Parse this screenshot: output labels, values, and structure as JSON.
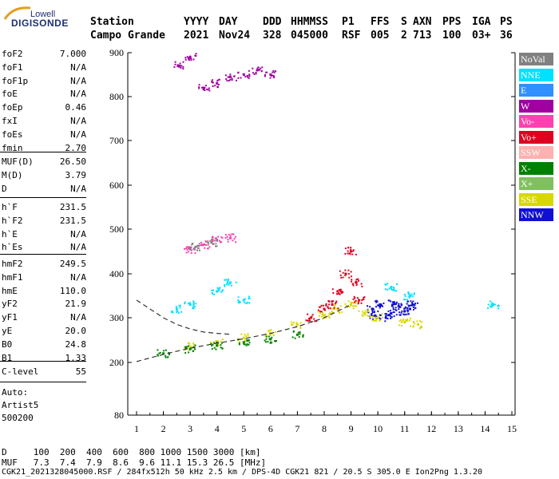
{
  "logo": {
    "top": "Lowell",
    "bottom": "DIGISONDE"
  },
  "header": {
    "labels": [
      "Station",
      "YYYY",
      "DAY",
      "DDD",
      "HHMMSS",
      "P1",
      "FFS",
      "S",
      "AXN",
      "PPS",
      "IGA",
      "PS"
    ],
    "values": [
      "Campo Grande",
      "2021",
      "Nov24",
      "328",
      "045000",
      "RSF",
      "005",
      "2",
      "713",
      "100",
      "03+",
      "36"
    ]
  },
  "params": {
    "group1": [
      {
        "name": "foF2",
        "value": "7.000"
      },
      {
        "name": "foF1",
        "value": "N/A"
      },
      {
        "name": "foF1p",
        "value": "N/A"
      },
      {
        "name": "foE",
        "value": "N/A"
      },
      {
        "name": "foEp",
        "value": "0.46"
      },
      {
        "name": "fxI",
        "value": "N/A"
      },
      {
        "name": "foEs",
        "value": "N/A"
      },
      {
        "name": "fmin",
        "value": "2.70"
      }
    ],
    "group2": [
      {
        "name": "MUF(D)",
        "value": "26.50"
      },
      {
        "name": "M(D)",
        "value": "3.79"
      },
      {
        "name": "D",
        "value": "N/A"
      }
    ],
    "group3": [
      {
        "name": "h`F",
        "value": "231.5"
      },
      {
        "name": "h`F2",
        "value": "231.5"
      },
      {
        "name": "h`E",
        "value": "N/A"
      },
      {
        "name": "h`Es",
        "value": "N/A"
      }
    ],
    "group4": [
      {
        "name": "hmF2",
        "value": "249.5"
      },
      {
        "name": "hmF1",
        "value": "N/A"
      },
      {
        "name": "hmE",
        "value": "110.0"
      },
      {
        "name": "yF2",
        "value": "21.9"
      },
      {
        "name": "yF1",
        "value": "N/A"
      },
      {
        "name": "yE",
        "value": "20.0"
      },
      {
        "name": "B0",
        "value": "24.8"
      },
      {
        "name": "B1",
        "value": "1.33"
      }
    ],
    "group5": [
      {
        "name": "C-level",
        "value": "55"
      }
    ],
    "auto": [
      "Auto:",
      "Artist5",
      "500200"
    ]
  },
  "legend": [
    {
      "label": "NoVal",
      "color": "#808080"
    },
    {
      "label": "NNE",
      "color": "#00e0ff"
    },
    {
      "label": "E",
      "color": "#3090ff"
    },
    {
      "label": "W",
      "color": "#a000a0"
    },
    {
      "label": "Vo-",
      "color": "#ff40b0"
    },
    {
      "label": "Vo+",
      "color": "#e00020"
    },
    {
      "label": "SSW",
      "color": "#ffb0b0"
    },
    {
      "label": "X-",
      "color": "#008000"
    },
    {
      "label": "X+",
      "color": "#80c060"
    },
    {
      "label": "SSE",
      "color": "#d8d800"
    },
    {
      "label": "NNW",
      "color": "#1010d0"
    }
  ],
  "footer": {
    "line1": "D     100  200  400  600  800 1000 1500 3000 [km]",
    "line2": "MUF   7.3  7.4  7.9  8.6  9.6 11.1 15.3 26.5 [MHz]",
    "line3": "CGK21_2021328045000.RSF / 284fx512h 50 kHz 2.5 km / DPS-4D CGK21 821 / 20.5 S 305.0 E Ion2Png 1.3.20"
  },
  "chart_data": {
    "type": "scatter",
    "xlabel": "",
    "ylabel": "",
    "xlim": [
      0.8,
      15.2
    ],
    "ylim": [
      80,
      900
    ],
    "x_ticks": [
      1,
      2,
      3,
      4,
      5,
      6,
      7,
      8,
      9,
      10,
      11,
      12,
      13,
      14,
      15
    ],
    "y_ticks": [
      80,
      200,
      300,
      400,
      500,
      600,
      700,
      800,
      900
    ],
    "grid": false,
    "legend_position": "right",
    "series": [
      {
        "name": "NNW",
        "points": [
          [
            9.8,
            320
          ],
          [
            10.1,
            330
          ],
          [
            10.5,
            310
          ],
          [
            10.8,
            325
          ],
          [
            11.0,
            315
          ],
          [
            11.3,
            330
          ],
          [
            10.3,
            300
          ],
          [
            9.9,
            305
          ],
          [
            10.6,
            335
          ],
          [
            11.2,
            320
          ]
        ]
      },
      {
        "name": "SSE",
        "points": [
          [
            3.0,
            235
          ],
          [
            4.0,
            245
          ],
          [
            5.0,
            255
          ],
          [
            6.0,
            265
          ],
          [
            7.0,
            285
          ],
          [
            8.0,
            305
          ],
          [
            8.5,
            320
          ],
          [
            9.0,
            330
          ],
          [
            9.5,
            310
          ],
          [
            10.0,
            300
          ],
          [
            11.0,
            290
          ],
          [
            11.5,
            285
          ]
        ]
      },
      {
        "name": "Vo+",
        "points": [
          [
            7.5,
            300
          ],
          [
            8.0,
            320
          ],
          [
            8.5,
            360
          ],
          [
            8.8,
            400
          ],
          [
            9.0,
            450
          ],
          [
            9.2,
            380
          ],
          [
            9.3,
            340
          ],
          [
            8.3,
            330
          ]
        ]
      },
      {
        "name": "X-",
        "points": [
          [
            2.0,
            220
          ],
          [
            3.0,
            230
          ],
          [
            4.0,
            238
          ],
          [
            5.0,
            245
          ],
          [
            6.0,
            252
          ],
          [
            7.0,
            262
          ]
        ]
      },
      {
        "name": "NNE",
        "points": [
          [
            2.5,
            320
          ],
          [
            3.0,
            330
          ],
          [
            4.0,
            360
          ],
          [
            4.5,
            380
          ],
          [
            5.0,
            340
          ],
          [
            10.5,
            370
          ],
          [
            11.2,
            350
          ],
          [
            14.3,
            330
          ]
        ]
      },
      {
        "name": "W",
        "points": [
          [
            2.6,
            870
          ],
          [
            3.0,
            890
          ],
          [
            3.5,
            820
          ],
          [
            4.0,
            830
          ],
          [
            4.5,
            845
          ],
          [
            5.0,
            850
          ],
          [
            5.5,
            860
          ],
          [
            6.0,
            850
          ]
        ]
      },
      {
        "name": "Vo-",
        "points": [
          [
            3.0,
            455
          ],
          [
            3.5,
            465
          ],
          [
            4.0,
            475
          ],
          [
            4.5,
            480
          ]
        ]
      },
      {
        "name": "NoVal",
        "points": [
          [
            3.2,
            460
          ],
          [
            3.8,
            470
          ]
        ]
      }
    ],
    "curves": [
      {
        "name": "profile",
        "points": [
          [
            1.0,
            340
          ],
          [
            1.5,
            320
          ],
          [
            2.0,
            300
          ],
          [
            2.5,
            285
          ],
          [
            3.0,
            275
          ],
          [
            3.5,
            268
          ],
          [
            4.0,
            265
          ],
          [
            4.5,
            263
          ]
        ]
      },
      {
        "name": "profile-lower",
        "points": [
          [
            1.0,
            202
          ],
          [
            2.0,
            218
          ],
          [
            3.0,
            232
          ],
          [
            4.0,
            243
          ],
          [
            5.0,
            253
          ],
          [
            6.0,
            265
          ],
          [
            7.0,
            280
          ],
          [
            8.0,
            300
          ],
          [
            9.0,
            330
          ]
        ]
      }
    ]
  }
}
